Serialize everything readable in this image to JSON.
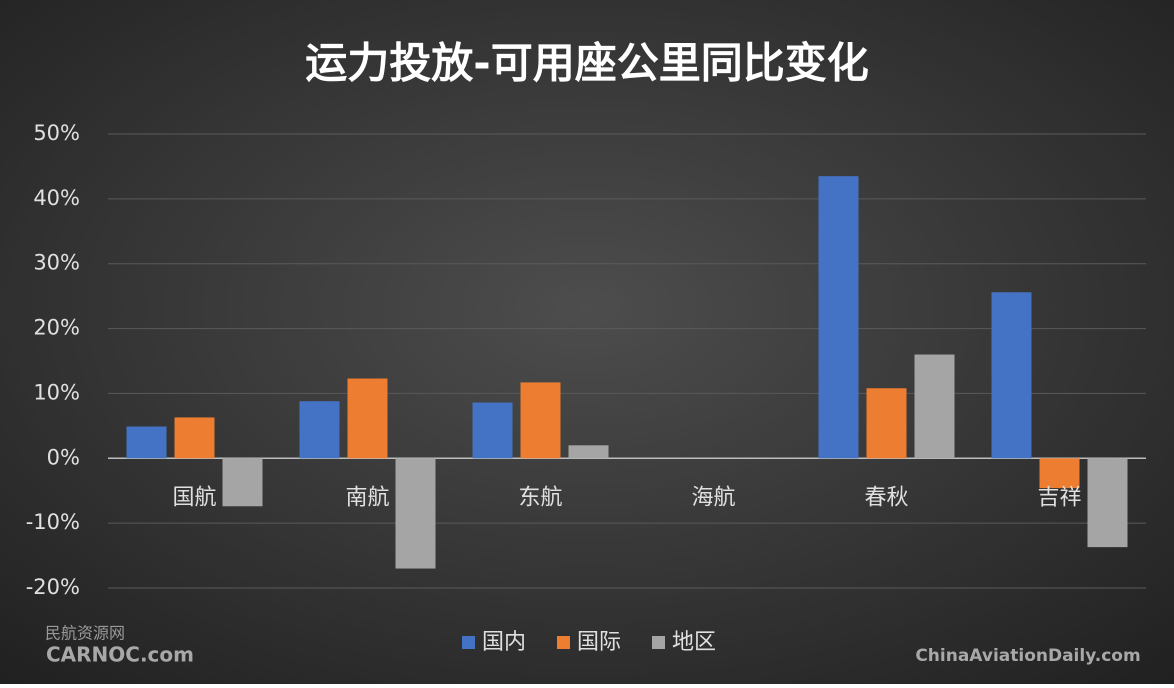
{
  "chart_data": {
    "type": "bar",
    "title": "运力投放-可用座公里同比变化",
    "categories": [
      "国航",
      "南航",
      "东航",
      "海航",
      "春秋",
      "吉祥"
    ],
    "series": [
      {
        "name": "国内",
        "color": "#4472c4",
        "values": [
          4.9,
          8.8,
          8.6,
          null,
          43.5,
          25.6
        ]
      },
      {
        "name": "国际",
        "color": "#ed7d31",
        "values": [
          6.3,
          12.3,
          11.7,
          null,
          10.8,
          -4.6
        ]
      },
      {
        "name": "地区",
        "color": "#a5a5a5",
        "values": [
          -7.4,
          -17.0,
          2.0,
          null,
          16.0,
          -13.7
        ]
      }
    ],
    "ylim": [
      -20,
      50
    ],
    "yticks": [
      {
        "value": -20,
        "label": "-20%"
      },
      {
        "value": -10,
        "label": "-10%"
      },
      {
        "value": 0,
        "label": "0%"
      },
      {
        "value": 10,
        "label": "10%"
      },
      {
        "value": 20,
        "label": "20%"
      },
      {
        "value": 30,
        "label": "30%"
      },
      {
        "value": 40,
        "label": "40%"
      },
      {
        "value": 50,
        "label": "50%"
      }
    ],
    "grid": true,
    "legend": "bottom"
  },
  "watermarks": [
    "民航资源网",
    "CARNOC.com",
    "ChinaAviationDaily.com"
  ]
}
